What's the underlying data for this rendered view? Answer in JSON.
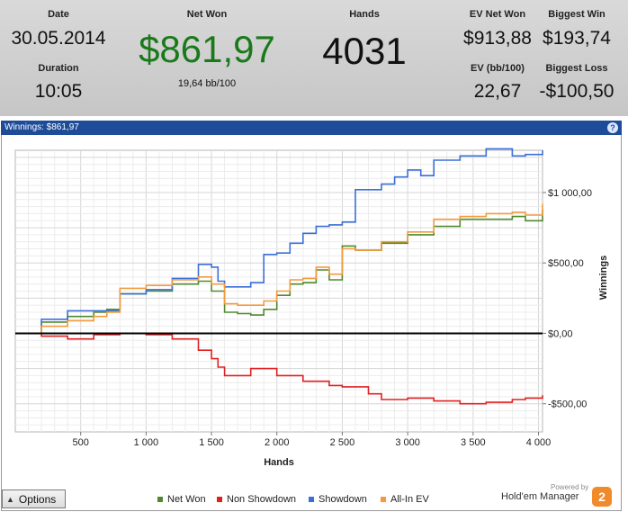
{
  "stats": {
    "date": {
      "label": "Date",
      "value": "30.05.2014"
    },
    "duration": {
      "label": "Duration",
      "value": "10:05"
    },
    "net_won": {
      "label": "Net Won",
      "value": "$861,97",
      "sub": "19,64 bb/100",
      "color": "#1a7a1a"
    },
    "hands": {
      "label": "Hands",
      "value": "4031"
    },
    "ev_net_won": {
      "label": "EV Net Won",
      "value": "$913,88"
    },
    "ev_bb": {
      "label": "EV (bb/100)",
      "value": "22,67"
    },
    "biggest_win": {
      "label": "Biggest Win",
      "value": "$193,74"
    },
    "biggest_loss": {
      "label": "Biggest Loss",
      "value": "-$100,50"
    }
  },
  "panel": {
    "title": "Winnings: $861,97",
    "help_icon": "help-icon",
    "help_glyph": "?"
  },
  "chart_data": {
    "type": "line",
    "xlabel": "Hands",
    "ylabel": "Winnings",
    "xlim": [
      0,
      4031
    ],
    "ylim": [
      -700,
      1300
    ],
    "x_ticks": [
      500,
      1000,
      1500,
      2000,
      2500,
      3000,
      3500,
      4000
    ],
    "x_tick_labels": [
      "500",
      "1 000",
      "1 500",
      "2 000",
      "2 500",
      "3 000",
      "3 500",
      "4 000"
    ],
    "y_ticks": [
      -500,
      0,
      500,
      1000
    ],
    "y_tick_labels": [
      "-$500,00",
      "$0,00",
      "$500,00",
      "$1 000,00"
    ],
    "grid": true,
    "zero_line": true,
    "legend_position": "bottom",
    "series": [
      {
        "name": "Net Won",
        "color": "#4f8a2f",
        "x": [
          0,
          200,
          400,
          600,
          700,
          800,
          1000,
          1200,
          1400,
          1500,
          1600,
          1700,
          1800,
          1900,
          2000,
          2100,
          2200,
          2300,
          2400,
          2500,
          2600,
          2800,
          3000,
          3200,
          3400,
          3600,
          3800,
          3900,
          4031
        ],
        "y": [
          0,
          80,
          120,
          150,
          170,
          280,
          300,
          350,
          370,
          300,
          150,
          140,
          130,
          170,
          270,
          350,
          360,
          450,
          380,
          620,
          590,
          640,
          700,
          760,
          810,
          810,
          830,
          800,
          880
        ]
      },
      {
        "name": "Non Showdown",
        "color": "#e02020",
        "x": [
          0,
          200,
          400,
          600,
          800,
          1000,
          1200,
          1400,
          1500,
          1550,
          1600,
          1800,
          2000,
          2200,
          2400,
          2500,
          2700,
          2800,
          3000,
          3200,
          3400,
          3600,
          3800,
          3900,
          4031
        ],
        "y": [
          0,
          -20,
          -40,
          -10,
          0,
          -10,
          -40,
          -120,
          -180,
          -240,
          -300,
          -250,
          -300,
          -340,
          -370,
          -380,
          -430,
          -470,
          -460,
          -480,
          -500,
          -490,
          -470,
          -460,
          -440
        ]
      },
      {
        "name": "Showdown",
        "color": "#3b6fd8",
        "x": [
          0,
          200,
          400,
          600,
          800,
          1000,
          1200,
          1400,
          1500,
          1550,
          1600,
          1800,
          1900,
          2000,
          2100,
          2200,
          2300,
          2400,
          2500,
          2600,
          2800,
          2900,
          3000,
          3100,
          3200,
          3400,
          3600,
          3800,
          3900,
          4031
        ],
        "y": [
          0,
          100,
          160,
          160,
          280,
          310,
          390,
          490,
          470,
          370,
          330,
          360,
          560,
          570,
          640,
          710,
          760,
          770,
          790,
          1020,
          1060,
          1110,
          1160,
          1120,
          1230,
          1260,
          1310,
          1260,
          1270,
          1300
        ]
      },
      {
        "name": "All-In EV",
        "color": "#f39a3c",
        "x": [
          0,
          200,
          400,
          600,
          700,
          800,
          1000,
          1200,
          1400,
          1500,
          1600,
          1700,
          1800,
          1900,
          2000,
          2100,
          2200,
          2300,
          2400,
          2500,
          2600,
          2800,
          3000,
          3200,
          3400,
          3600,
          3800,
          3900,
          4031
        ],
        "y": [
          0,
          50,
          90,
          120,
          150,
          320,
          340,
          380,
          400,
          350,
          210,
          200,
          200,
          230,
          300,
          380,
          390,
          470,
          420,
          600,
          590,
          650,
          720,
          810,
          830,
          850,
          860,
          840,
          920
        ]
      }
    ]
  },
  "footer": {
    "options_label": "Options",
    "options_icon": "triangle-up-icon",
    "options_glyph": "▲",
    "powered_by": "Powered by",
    "brand": "Hold'em Manager",
    "brand_logo_text": "2",
    "brand_color": "#f08a2a"
  }
}
